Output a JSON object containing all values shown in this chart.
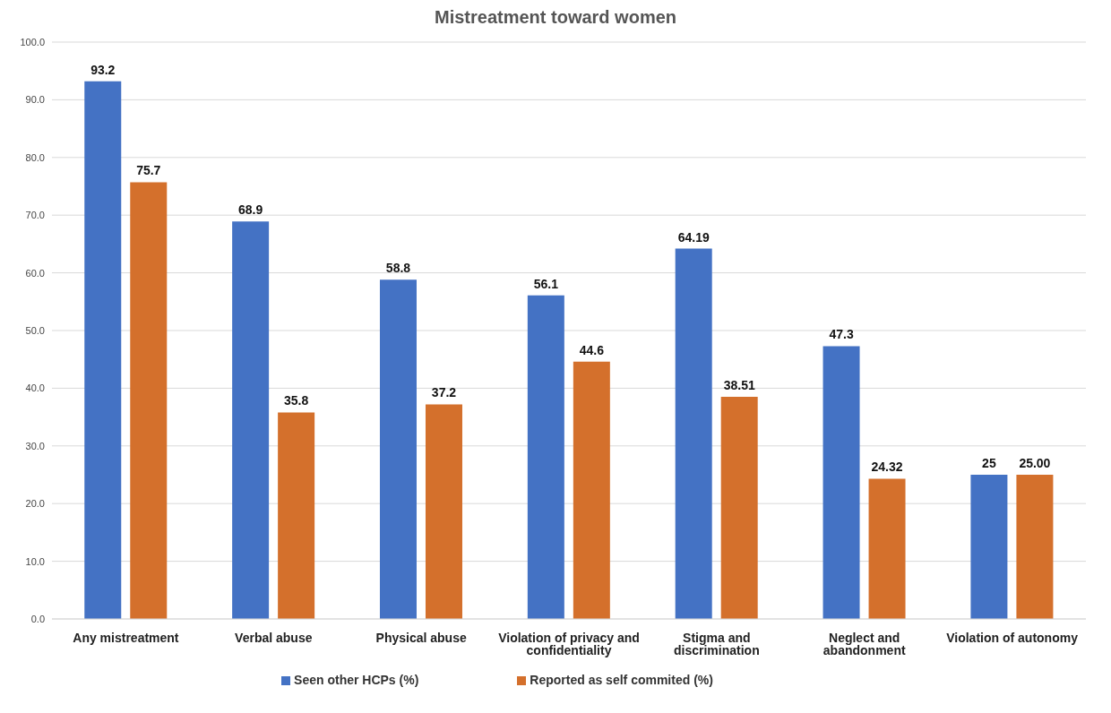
{
  "chart_data": {
    "type": "bar",
    "title": "Mistreatment toward women",
    "categories": [
      "Any mistreatment",
      "Verbal abuse",
      "Physical abuse",
      "Violation of privacy and confidentiality",
      "Stigma and discrimination",
      "Neglect and abandonment",
      "Violation of autonomy"
    ],
    "series": [
      {
        "name": "Seen other HCPs (%)",
        "color": "#4472c4",
        "values": [
          93.2,
          68.9,
          58.8,
          56.1,
          64.19,
          47.3,
          25
        ],
        "value_labels": [
          "93.2",
          "68.9",
          "58.8",
          "56.1",
          "64.19",
          "47.3",
          "25"
        ]
      },
      {
        "name": "Reported as self commited (%)",
        "color": "#d4702c",
        "values": [
          75.7,
          35.8,
          37.2,
          44.6,
          38.51,
          24.32,
          25
        ],
        "value_labels": [
          "75.7",
          "35.8",
          "37.2",
          "44.6",
          "38.51",
          "24.32",
          "25.00"
        ]
      }
    ],
    "ylim": [
      0,
      100
    ],
    "yticks": [
      {
        "value": 0,
        "label": "0.0"
      },
      {
        "value": 10,
        "label": "10.0"
      },
      {
        "value": 20,
        "label": "20.0"
      },
      {
        "value": 30,
        "label": "30.0"
      },
      {
        "value": 40,
        "label": "40.0"
      },
      {
        "value": 50,
        "label": "50.0"
      },
      {
        "value": 60,
        "label": "60.0"
      },
      {
        "value": 70,
        "label": "70.0"
      },
      {
        "value": 80,
        "label": "80.0"
      },
      {
        "value": 90,
        "label": "90.0"
      },
      {
        "value": 100,
        "label": "100.0"
      }
    ],
    "grid": "y",
    "legend": "bottom"
  }
}
